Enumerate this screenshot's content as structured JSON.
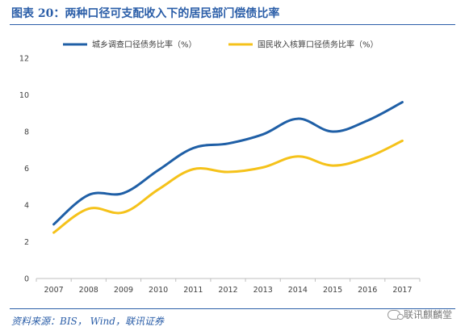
{
  "header": {
    "title": "图表 20：两种口径可支配收入下的居民部门偿债比率"
  },
  "footer": {
    "source": "资料来源：BIS， Wind，联讯证券",
    "brand": "联讯麒麟堂"
  },
  "chart_data": {
    "type": "line",
    "title": "",
    "xlabel": "",
    "ylabel": "",
    "x": [
      "2007",
      "2008",
      "2009",
      "2010",
      "2011",
      "2012",
      "2013",
      "2014",
      "2015",
      "2016",
      "2017"
    ],
    "ylim": [
      0,
      12
    ],
    "yticks": [
      0,
      2,
      4,
      6,
      8,
      10,
      12
    ],
    "grid": false,
    "legend_position": "top",
    "series": [
      {
        "name": "城乡调查口径债务比率（%）",
        "color": "#1f5fa6",
        "values": [
          2.95,
          4.55,
          4.65,
          5.9,
          7.1,
          7.35,
          7.85,
          8.7,
          8.0,
          8.6,
          9.6
        ]
      },
      {
        "name": "国民收入核算口径债务比率（%）",
        "color": "#f5c21a",
        "values": [
          2.5,
          3.8,
          3.6,
          4.85,
          5.95,
          5.8,
          6.05,
          6.65,
          6.15,
          6.6,
          7.5
        ]
      }
    ]
  }
}
